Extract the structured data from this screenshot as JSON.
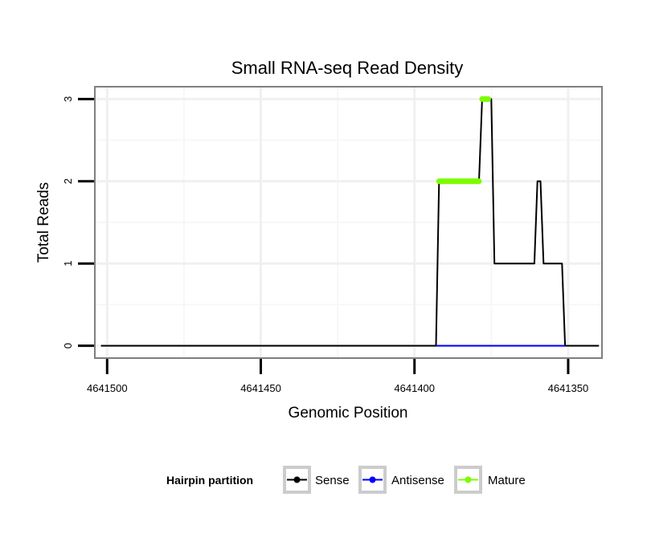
{
  "chart_data": {
    "type": "line",
    "title": "Small RNA-seq Read Density",
    "xlabel": "Genomic Position",
    "ylabel": "Total Reads",
    "xlim": [
      4641504,
      4641339
    ],
    "ylim": [
      -0.15,
      3.15
    ],
    "x_reversed": true,
    "xticks": [
      4641500,
      4641450,
      4641400,
      4641350
    ],
    "xtick_labels": [
      "4641500",
      "4641450",
      "4641400",
      "4641350"
    ],
    "yticks": [
      0,
      1,
      2,
      3
    ],
    "ytick_labels": [
      "0",
      "1",
      "2",
      "3"
    ],
    "x_minor_grid": [
      4641475,
      4641425,
      4641375
    ],
    "y_minor_grid": [
      0.5,
      1.5,
      2.5
    ],
    "grid": true,
    "legend": {
      "title": "Hairpin partition",
      "position": "bottom",
      "entries": [
        "Sense",
        "Antisense",
        "Mature"
      ]
    },
    "colors": {
      "Sense": "#000000",
      "Antisense": "#0000ff",
      "Mature": "#7cfc00"
    },
    "series": [
      {
        "name": "Sense",
        "x": [
          4641502,
          4641393,
          4641392,
          4641379,
          4641378,
          4641375,
          4641374,
          4641361,
          4641360,
          4641359,
          4641358,
          4641352,
          4641351,
          4641340
        ],
        "y": [
          0,
          0,
          2,
          2,
          3,
          3,
          1,
          1,
          2,
          2,
          1,
          1,
          0,
          0
        ]
      },
      {
        "name": "Antisense",
        "x": [
          4641393,
          4641351
        ],
        "y": [
          0,
          0
        ]
      },
      {
        "name": "Mature",
        "segments": [
          {
            "x": [
              4641392,
              4641379
            ],
            "y": [
              2,
              2
            ]
          },
          {
            "x": [
              4641378,
              4641376
            ],
            "y": [
              3,
              3
            ]
          }
        ]
      }
    ]
  }
}
